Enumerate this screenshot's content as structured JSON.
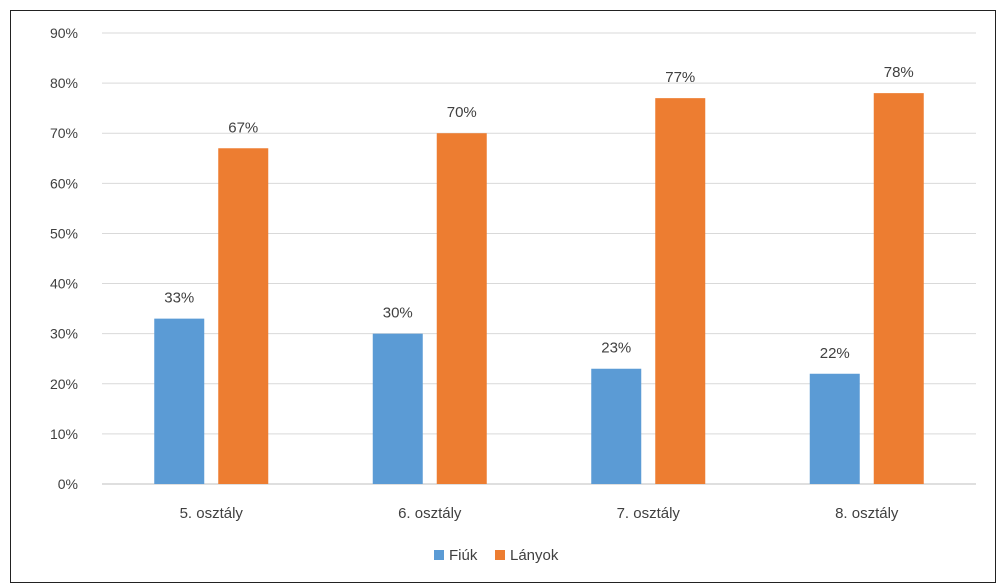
{
  "chart_data": {
    "type": "bar",
    "title": "",
    "xlabel": "",
    "ylabel": "",
    "categories": [
      "5. osztály",
      "6. osztály",
      "7. osztály",
      "8. osztály"
    ],
    "series": [
      {
        "name": "Fiúk",
        "values": [
          33,
          30,
          23,
          22
        ],
        "labels": [
          "33%",
          "30%",
          "23%",
          "22%"
        ],
        "color": "#5B9BD5"
      },
      {
        "name": "Lányok",
        "values": [
          67,
          70,
          77,
          78
        ],
        "labels": [
          "67%",
          "70%",
          "77%",
          "78%"
        ],
        "color": "#ED7D31"
      }
    ],
    "ylim": [
      0,
      90
    ],
    "yticks": [
      0,
      10,
      20,
      30,
      40,
      50,
      60,
      70,
      80,
      90
    ],
    "ytick_labels": [
      "0%",
      "10%",
      "20%",
      "30%",
      "40%",
      "50%",
      "60%",
      "70%",
      "80%",
      "90%"
    ],
    "grid": true,
    "gridColor": "#D9D9D9",
    "legend": "bottom"
  }
}
